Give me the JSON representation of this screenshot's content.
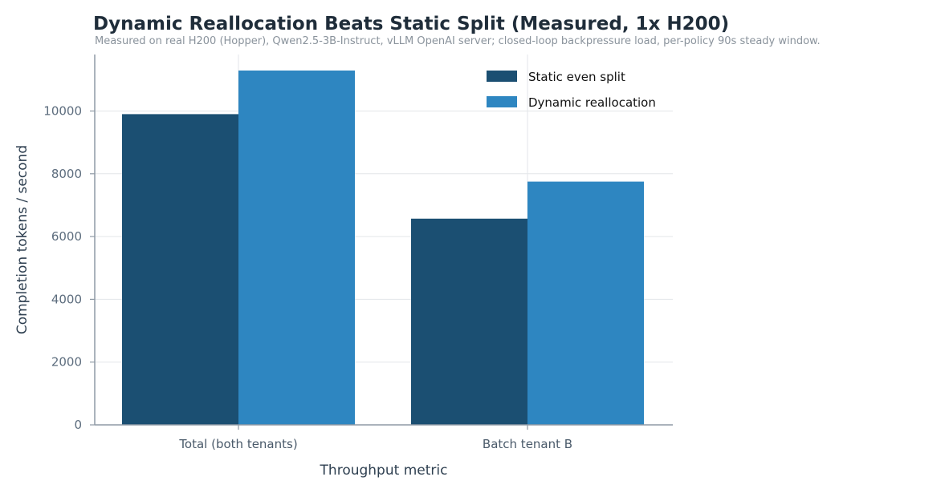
{
  "chart_data": {
    "type": "bar",
    "title": "Dynamic Reallocation Beats Static Split (Measured, 1x H200)",
    "subtitle": "Measured on real H200 (Hopper), Qwen2.5-3B-Instruct, vLLM OpenAI server; closed-loop backpressure load, per-policy 90s steady window.",
    "xlabel": "Throughput metric",
    "ylabel": "Completion tokens / second",
    "categories": [
      "Total (both tenants)",
      "Batch tenant B"
    ],
    "series": [
      {
        "name": "Static even split",
        "color": "#1b4f72",
        "values": [
          9900,
          6570
        ]
      },
      {
        "name": "Dynamic reallocation",
        "color": "#2e86c1",
        "values": [
          11290,
          7750
        ]
      }
    ],
    "ylim": [
      0,
      11800
    ],
    "yticks": [
      0,
      2000,
      4000,
      6000,
      8000,
      10000
    ],
    "grid": true,
    "legend_position": "top-right"
  }
}
